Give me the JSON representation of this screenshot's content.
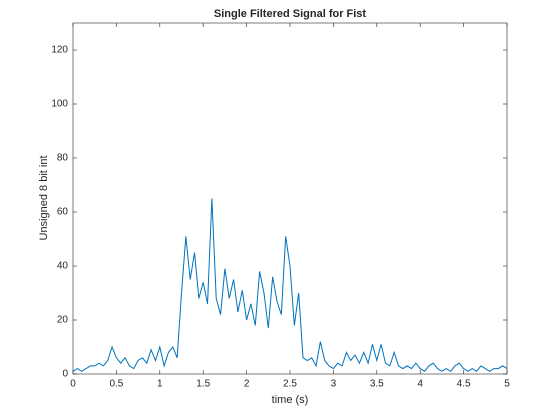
{
  "chart_data": {
    "type": "line",
    "title": "Single Filtered Signal for Fist",
    "xlabel": "time (s)",
    "ylabel": "Unsigned 8 bit int",
    "x": [
      0,
      0.05,
      0.1,
      0.15,
      0.2,
      0.25,
      0.3,
      0.35,
      0.4,
      0.45,
      0.5,
      0.55,
      0.6,
      0.65,
      0.7,
      0.75,
      0.8,
      0.85,
      0.9,
      0.95,
      1,
      1.05,
      1.1,
      1.15,
      1.2,
      1.25,
      1.3,
      1.35,
      1.4,
      1.45,
      1.5,
      1.55,
      1.6,
      1.65,
      1.7,
      1.75,
      1.8,
      1.85,
      1.9,
      1.95,
      2,
      2.05,
      2.1,
      2.15,
      2.2,
      2.25,
      2.3,
      2.35,
      2.4,
      2.45,
      2.5,
      2.55,
      2.6,
      2.65,
      2.7,
      2.75,
      2.8,
      2.85,
      2.9,
      2.95,
      3,
      3.05,
      3.1,
      3.15,
      3.2,
      3.25,
      3.3,
      3.35,
      3.4,
      3.45,
      3.5,
      3.55,
      3.6,
      3.65,
      3.7,
      3.75,
      3.8,
      3.85,
      3.9,
      3.95,
      4,
      4.05,
      4.1,
      4.15,
      4.2,
      4.25,
      4.3,
      4.35,
      4.4,
      4.45,
      4.5,
      4.55,
      4.6,
      4.65,
      4.7,
      4.75,
      4.8,
      4.85,
      4.9,
      4.95,
      5
    ],
    "series": [
      {
        "color": "#0072bd",
        "values": [
          1,
          2,
          1,
          2,
          3,
          3,
          4,
          3,
          5,
          10,
          6,
          4,
          6,
          3,
          2,
          5,
          6,
          4,
          9,
          5,
          10,
          3,
          8,
          10,
          6,
          30,
          51,
          35,
          45,
          28,
          34,
          26,
          65,
          28,
          22,
          39,
          28,
          35,
          23,
          31,
          20,
          26,
          18,
          38,
          30,
          17,
          36,
          27,
          22,
          51,
          40,
          18,
          30,
          6,
          5,
          6,
          3,
          12,
          5,
          3,
          2,
          4,
          3,
          8,
          5,
          7,
          4,
          8,
          4,
          11,
          5,
          11,
          4,
          3,
          8,
          3,
          2,
          3,
          2,
          4,
          2,
          1,
          3,
          4,
          2,
          1,
          2,
          1,
          3,
          4,
          2,
          1,
          2,
          1,
          3,
          2,
          1,
          2,
          2,
          3,
          2
        ]
      }
    ],
    "xlim": [
      0,
      5
    ],
    "ylim": [
      0,
      130
    ],
    "xticks": [
      0,
      0.5,
      1,
      1.5,
      2,
      2.5,
      3,
      3.5,
      4,
      4.5,
      5
    ],
    "yticks": [
      0,
      20,
      40,
      60,
      80,
      100,
      120
    ]
  }
}
